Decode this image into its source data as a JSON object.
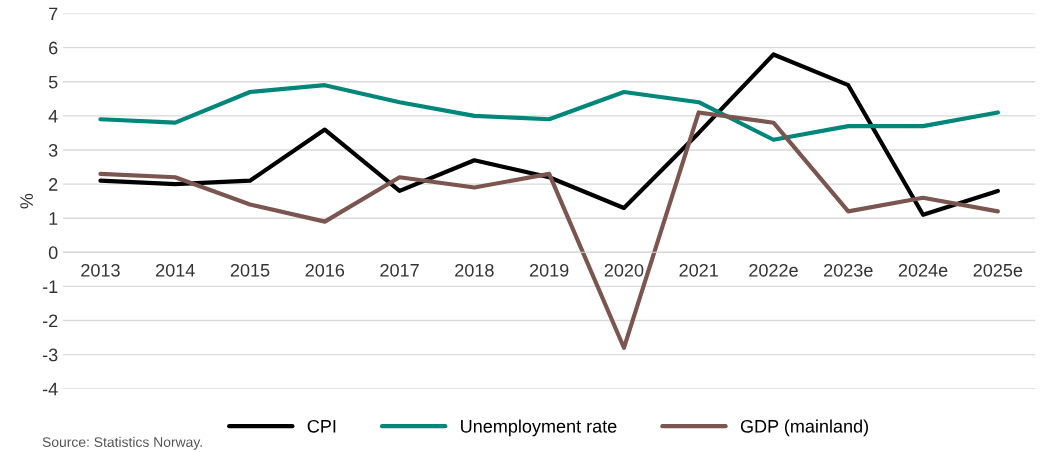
{
  "chart_data": {
    "type": "line",
    "ylabel": "%",
    "categories": [
      "2013",
      "2014",
      "2015",
      "2016",
      "2017",
      "2018",
      "2019",
      "2020",
      "2021",
      "2022e",
      "2023e",
      "2024e",
      "2025e"
    ],
    "series": [
      {
        "name": "CPI",
        "color": "#000000",
        "values": [
          2.1,
          2.0,
          2.1,
          3.6,
          1.8,
          2.7,
          2.2,
          1.3,
          3.5,
          5.8,
          4.9,
          1.1,
          1.8
        ]
      },
      {
        "name": "Unemployment rate",
        "color": "#00877a",
        "values": [
          3.9,
          3.8,
          4.7,
          4.9,
          4.4,
          4.0,
          3.9,
          4.7,
          4.4,
          3.3,
          3.7,
          3.7,
          4.1
        ]
      },
      {
        "name": "GDP (mainland)",
        "color": "#7b5650",
        "values": [
          2.3,
          2.2,
          1.4,
          0.9,
          2.2,
          1.9,
          2.3,
          -2.8,
          4.1,
          3.8,
          1.2,
          1.6,
          1.2
        ]
      }
    ],
    "ylim": [
      -4,
      7
    ],
    "yticks": [
      -4,
      -3,
      -2,
      -1,
      0,
      1,
      2,
      3,
      4,
      5,
      6,
      7
    ],
    "grid": "y",
    "legend": "bottom",
    "marker": "none",
    "line_style": "solid",
    "annotations": [
      "Source: Statistics Norway."
    ]
  }
}
